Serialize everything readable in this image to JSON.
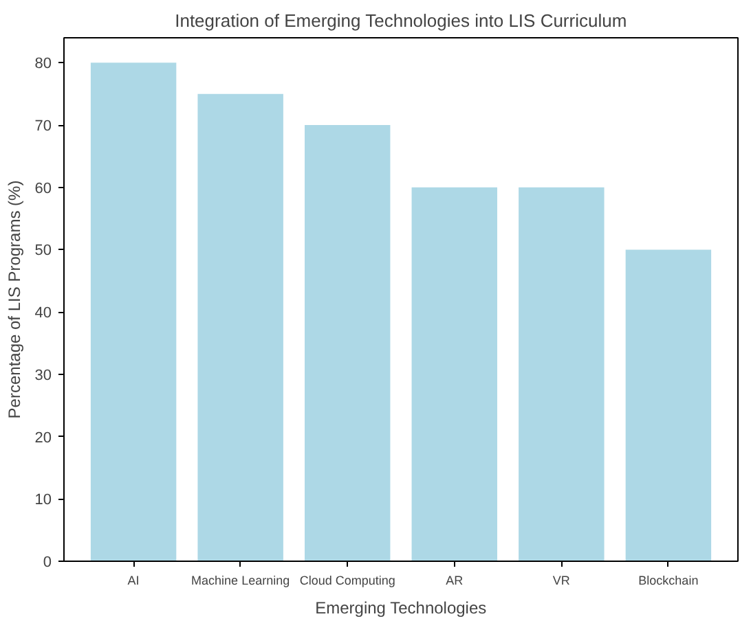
{
  "chart_data": {
    "type": "bar",
    "title": "Integration of Emerging Technologies into LIS Curriculum",
    "xlabel": "Emerging Technologies",
    "ylabel": "Percentage of LIS Programs (%)",
    "categories": [
      "AI",
      "Machine Learning",
      "Cloud Computing",
      "AR",
      "VR",
      "Blockchain"
    ],
    "values": [
      80,
      75,
      70,
      60,
      60,
      50
    ],
    "color": "#add8e6",
    "ylim": [
      0,
      84
    ],
    "yticks": [
      0,
      10,
      20,
      30,
      40,
      50,
      60,
      70,
      80
    ],
    "grid": false
  }
}
